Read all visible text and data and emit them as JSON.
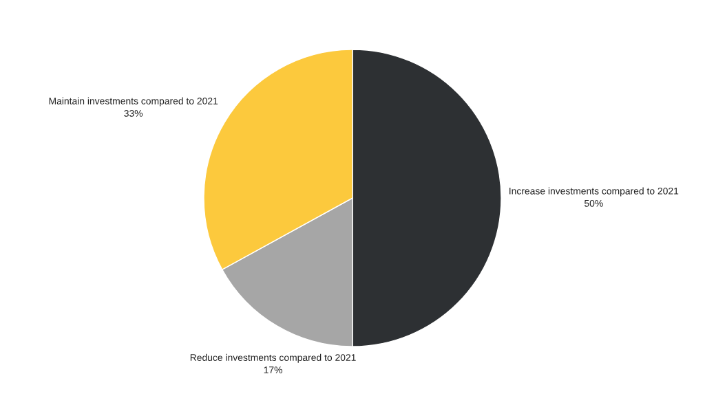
{
  "chart_data": {
    "type": "pie",
    "categories": [
      "Increase investments compared to 2021",
      "Reduce investments compared to 2021",
      "Maintain investments compared to 2021"
    ],
    "values": [
      50,
      17,
      33
    ],
    "colors": [
      "#2d3033",
      "#a6a6a6",
      "#fcc93d"
    ],
    "value_labels": [
      "50%",
      "17%",
      "33%"
    ]
  }
}
